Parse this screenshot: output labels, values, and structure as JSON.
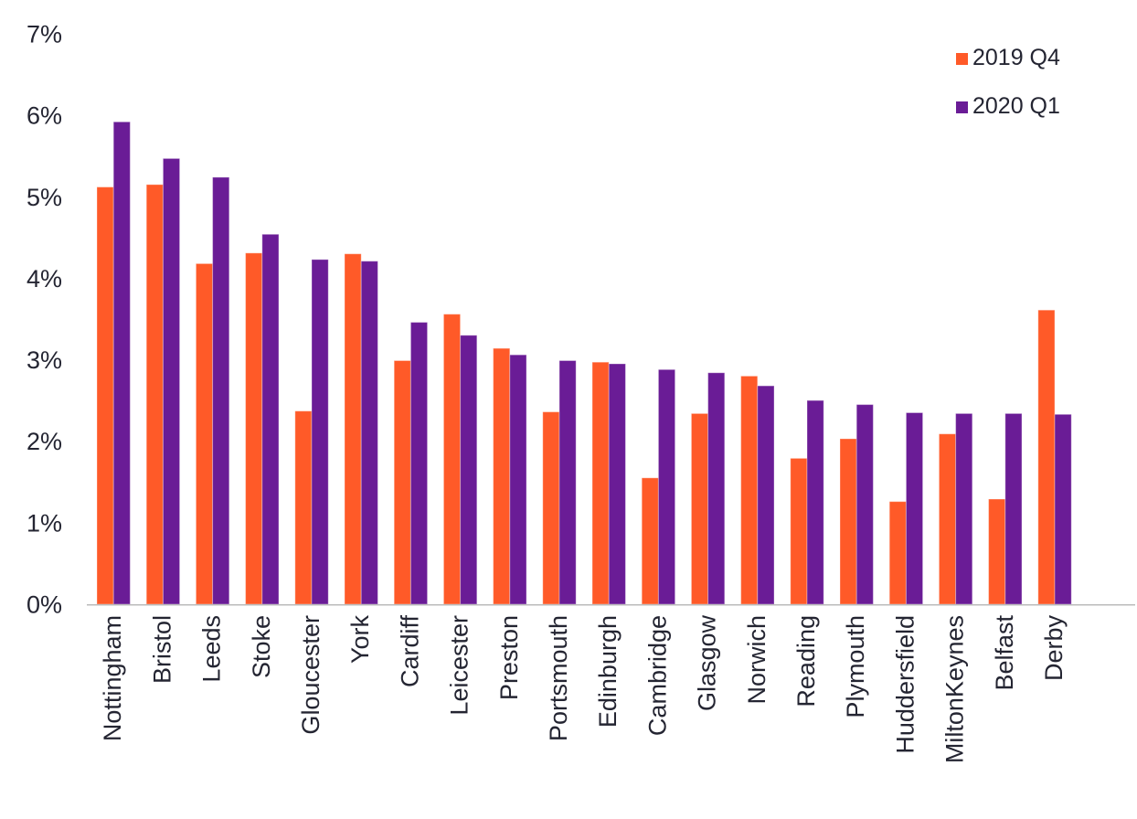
{
  "chart_data": {
    "type": "bar",
    "title": "",
    "xlabel": "",
    "ylabel": "",
    "categories": [
      "Nottingham",
      "Bristol",
      "Leeds",
      "Stoke",
      "Gloucester",
      "York",
      "Cardiff",
      "Leicester",
      "Preston",
      "Portsmouth",
      "Edinburgh",
      "Cambridge",
      "Glasgow",
      "Norwich",
      "Reading",
      "Plymouth",
      "Huddersfield",
      "MiltonKeynes",
      "Belfast",
      "Derby"
    ],
    "series": [
      {
        "name": "2019 Q4",
        "color": "#FF5A28",
        "values": [
          5.12,
          5.15,
          4.18,
          4.31,
          2.37,
          4.3,
          2.99,
          3.56,
          3.14,
          2.36,
          2.97,
          1.55,
          2.34,
          2.8,
          1.79,
          2.03,
          1.26,
          2.09,
          1.29,
          3.61
        ]
      },
      {
        "name": "2020 Q1",
        "color": "#6A1C96",
        "values": [
          5.92,
          5.47,
          5.24,
          4.54,
          4.23,
          4.21,
          3.46,
          3.3,
          3.06,
          2.99,
          2.95,
          2.88,
          2.84,
          2.68,
          2.5,
          2.45,
          2.35,
          2.34,
          2.34,
          2.33
        ]
      }
    ],
    "ylim": [
      0,
      7
    ],
    "ytick_values": [
      0,
      1,
      2,
      3,
      4,
      5,
      6,
      7
    ],
    "ytick_labels": [
      "0%",
      "1%",
      "2%",
      "3%",
      "4%",
      "5%",
      "6%",
      "7%"
    ],
    "grid": false,
    "legend_position": "top-right",
    "x_label_rotation": -90
  },
  "colors": {
    "series_2019_q4": "#FF5A28",
    "series_2020_q1": "#6A1C96",
    "axis_text": "#242532",
    "axis_line": "#BBBBBB",
    "background": "#FFFFFF"
  }
}
